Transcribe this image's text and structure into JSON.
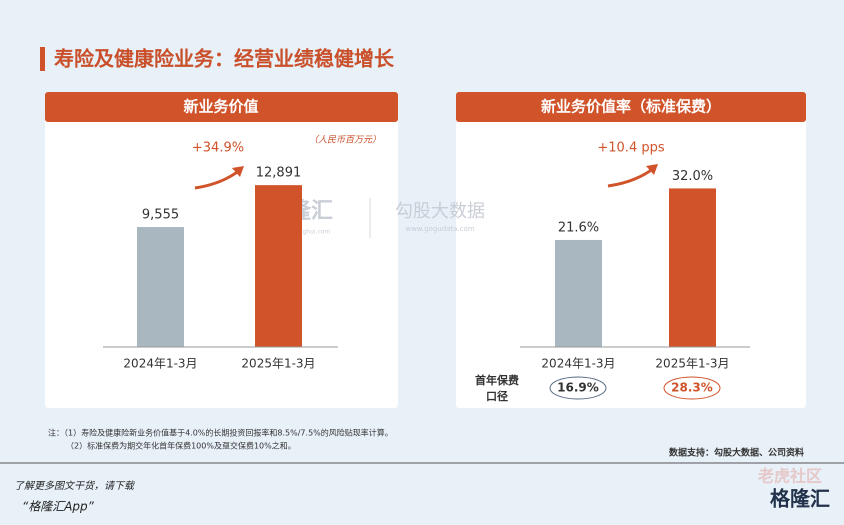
{
  "header": {
    "title": "寿险及健康险业务：经营业绩稳健增长"
  },
  "chart_data": [
    {
      "type": "bar",
      "title": "新业务价值",
      "unit": "（人民币百万元）",
      "annotation": "+34.9%",
      "categories": [
        "2024年1-3月",
        "2025年1-3月"
      ],
      "values": [
        9555,
        12891
      ],
      "value_labels": [
        "9,555",
        "12,891"
      ],
      "colors": [
        "#a9b8c0",
        "#d0532a"
      ],
      "ylim": [
        0,
        18000
      ]
    },
    {
      "type": "bar",
      "title": "新业务价值率（标准保费）",
      "annotation": "+10.4 pps",
      "categories": [
        "2024年1-3月",
        "2025年1-3月"
      ],
      "values": [
        21.6,
        32.0
      ],
      "value_labels": [
        "21.6%",
        "32.0%"
      ],
      "colors": [
        "#a9b8c0",
        "#d0532a"
      ],
      "ylim": [
        0,
        45
      ],
      "first_year_basis": {
        "label_lines": [
          "首年保费",
          "口径"
        ],
        "values": [
          "16.9%",
          "28.3%"
        ]
      }
    }
  ],
  "watermark": {
    "left": "格隆汇",
    "left_url": "www.gelonghui.com",
    "right": "勾股大数据",
    "right_url": "www.gogudata.com"
  },
  "notes": [
    "注：（1）寿险及健康险新业务价值基于4.0%的长期投资回报率和8.5%/7.5%的风险贴现率计算。",
    "（2）标准保费为期交年化首年保费100%及趸交保费10%之和。"
  ],
  "source": "数据支持：勾股大数据、公司资料",
  "footer": {
    "line1": "了解更多图文干货，请下载",
    "line2": "“格隆汇App”",
    "logo": "格隆汇",
    "community": "老虎社区"
  }
}
